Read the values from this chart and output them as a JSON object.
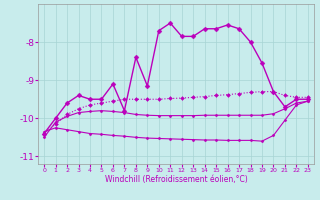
{
  "xlabel": "Windchill (Refroidissement éolien,°C)",
  "bg_color": "#c8ecec",
  "grid_color": "#a8d4d4",
  "line_color": "#bb00bb",
  "ylim": [
    -11.2,
    -7.0
  ],
  "xlim": [
    -0.5,
    23.5
  ],
  "yticks": [
    -11,
    -10,
    -9,
    -8
  ],
  "xticks": [
    0,
    1,
    2,
    3,
    4,
    5,
    6,
    7,
    8,
    9,
    10,
    11,
    12,
    13,
    14,
    15,
    16,
    17,
    18,
    19,
    20,
    21,
    22,
    23
  ],
  "lines": [
    {
      "x": [
        0,
        1,
        2,
        3,
        4,
        5,
        6,
        7,
        8,
        9,
        10,
        11,
        12,
        13,
        14,
        15,
        16,
        17,
        18,
        19,
        20,
        21,
        22,
        23
      ],
      "y": [
        -10.4,
        -10.0,
        -9.6,
        -9.4,
        -9.5,
        -9.5,
        -9.1,
        -9.8,
        -8.4,
        -9.15,
        -7.7,
        -7.5,
        -7.85,
        -7.85,
        -7.65,
        -7.65,
        -7.55,
        -7.65,
        -8.0,
        -8.55,
        -9.3,
        -9.7,
        -9.5,
        -9.5
      ],
      "linestyle": "-",
      "linewidth": 1.0,
      "markersize": 2.5
    },
    {
      "x": [
        0,
        1,
        2,
        3,
        4,
        5,
        6,
        7,
        8,
        9,
        10,
        11,
        12,
        13,
        14,
        15,
        16,
        17,
        18,
        19,
        20,
        21,
        22,
        23
      ],
      "y": [
        -10.4,
        -10.15,
        -9.9,
        -9.75,
        -9.65,
        -9.6,
        -9.55,
        -9.5,
        -9.5,
        -9.5,
        -9.5,
        -9.48,
        -9.47,
        -9.45,
        -9.43,
        -9.4,
        -9.38,
        -9.35,
        -9.32,
        -9.3,
        -9.3,
        -9.4,
        -9.45,
        -9.45
      ],
      "linestyle": ":",
      "linewidth": 0.8,
      "markersize": 2.0
    },
    {
      "x": [
        0,
        1,
        2,
        3,
        4,
        5,
        6,
        7,
        8,
        9,
        10,
        11,
        12,
        13,
        14,
        15,
        16,
        17,
        18,
        19,
        20,
        21,
        22,
        23
      ],
      "y": [
        -10.5,
        -10.1,
        -9.95,
        -9.85,
        -9.82,
        -9.8,
        -9.82,
        -9.85,
        -9.9,
        -9.92,
        -9.93,
        -9.93,
        -9.93,
        -9.93,
        -9.92,
        -9.92,
        -9.92,
        -9.92,
        -9.92,
        -9.92,
        -9.88,
        -9.75,
        -9.6,
        -9.55
      ],
      "linestyle": "-",
      "linewidth": 0.8,
      "markersize": 1.5
    },
    {
      "x": [
        0,
        1,
        2,
        3,
        4,
        5,
        6,
        7,
        8,
        9,
        10,
        11,
        12,
        13,
        14,
        15,
        16,
        17,
        18,
        19,
        20,
        21,
        22,
        23
      ],
      "y": [
        -10.35,
        -10.25,
        -10.3,
        -10.35,
        -10.4,
        -10.42,
        -10.45,
        -10.47,
        -10.5,
        -10.52,
        -10.53,
        -10.54,
        -10.55,
        -10.56,
        -10.57,
        -10.57,
        -10.58,
        -10.58,
        -10.58,
        -10.6,
        -10.45,
        -10.05,
        -9.65,
        -9.55
      ],
      "linestyle": "-",
      "linewidth": 0.8,
      "markersize": 1.5
    }
  ]
}
